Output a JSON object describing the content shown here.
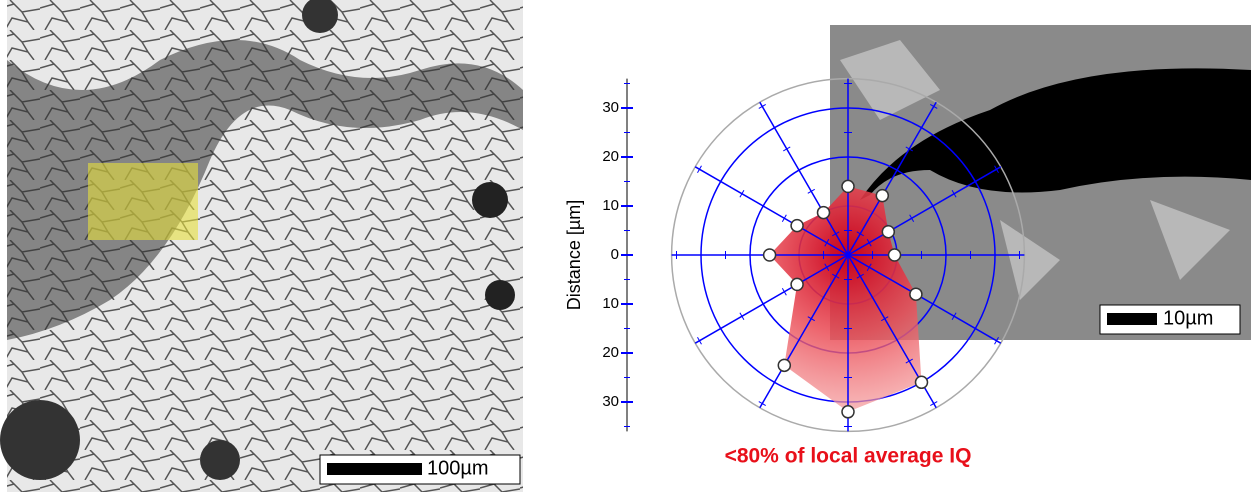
{
  "chart_data": {
    "type": "polar",
    "ylabel": "Distance [µm]",
    "caption": "<80% of local average IQ",
    "left_scale_label": "100µm",
    "right_scale_label": "10µm",
    "theta": [
      0,
      30,
      60,
      90,
      120,
      150,
      180,
      210,
      240,
      270,
      300,
      330
    ],
    "values": [
      14,
      14,
      9.5,
      9.5,
      16,
      30,
      32,
      26,
      12,
      16,
      12,
      10
    ],
    "color": "#e8383a",
    "ylim": [
      -36,
      36
    ],
    "yticks": [
      {
        "value": -30,
        "label": "30"
      },
      {
        "value": -20,
        "label": "20"
      },
      {
        "value": -10,
        "label": "10"
      },
      0,
      10,
      20,
      30
    ]
  }
}
